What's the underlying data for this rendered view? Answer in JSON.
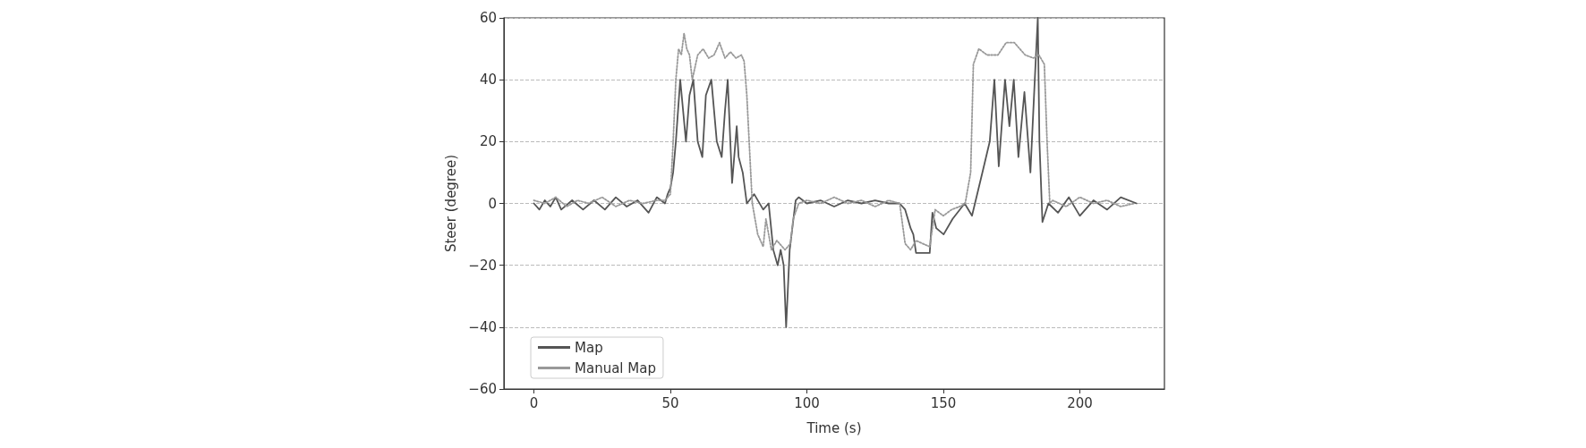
{
  "chart_data": {
    "type": "line",
    "xlabel": "Time (s)",
    "ylabel": "Steer (degree)",
    "xlim": [
      -11,
      231
    ],
    "xticks": [
      0,
      50,
      100,
      150,
      200
    ],
    "ylim": [
      -60,
      60
    ],
    "yticks": [
      -60,
      -40,
      -20,
      0,
      20,
      40,
      60
    ],
    "grid": "y",
    "legend": "bottom left",
    "marker": "none",
    "series": [
      {
        "name": "Map",
        "color": "#555555",
        "line_style": "solid",
        "x": [
          0,
          2,
          4,
          6,
          8,
          10,
          14,
          18,
          22,
          26,
          30,
          34,
          38,
          42,
          45,
          48,
          49,
          50,
          51,
          52,
          53.6,
          55.7,
          57,
          58.4,
          60,
          61.7,
          63,
          65,
          67,
          68.8,
          70,
          71,
          72.6,
          74.3,
          75,
          76.5,
          78,
          80.7,
          84,
          86,
          87.7,
          89.3,
          90.4,
          91.5,
          92.4,
          93.7,
          95.9,
          97,
          100,
          105,
          110,
          115,
          120,
          125,
          130,
          134,
          136,
          138,
          139,
          140,
          145,
          146,
          147.4,
          150.1,
          153.4,
          157.8,
          160.5,
          164.3,
          167,
          168.7,
          170.3,
          172.6,
          174.2,
          175.8,
          177.5,
          179.7,
          181.9,
          183.5,
          184.6,
          185.2,
          186.3,
          188.5,
          192,
          196,
          200,
          205,
          210,
          215,
          220.8
        ],
        "values": [
          0,
          -2,
          1,
          -1,
          2,
          -2,
          1,
          -2,
          1,
          -2,
          2,
          -1,
          1,
          -3,
          2,
          0,
          3,
          5,
          10,
          20,
          40,
          20,
          35,
          40,
          20,
          15,
          35,
          40,
          20,
          15,
          30,
          40,
          6.6,
          25,
          15,
          10,
          0,
          3,
          -2,
          0,
          -15,
          -20,
          -15,
          -20,
          -40,
          -15,
          1,
          2,
          0,
          1,
          -1,
          1,
          0,
          1,
          0,
          0,
          -2,
          -8,
          -10,
          -16,
          -16,
          -3,
          -8,
          -10,
          -5,
          0,
          -4,
          10,
          20,
          40,
          12,
          40,
          25,
          40,
          15,
          36,
          10,
          40,
          60,
          20,
          -6,
          0,
          -3,
          2,
          -4,
          1,
          -2,
          2,
          0
        ]
      },
      {
        "name": "Manual Map",
        "color": "#999999",
        "line_style": "dotted",
        "x": [
          0,
          4,
          8,
          12,
          16,
          20,
          25,
          30,
          35,
          40,
          45,
          48,
          50,
          51,
          52,
          53,
          54,
          55,
          56,
          57,
          58,
          60,
          62,
          64,
          66,
          68,
          70,
          72,
          74,
          76,
          77,
          78,
          80,
          82,
          84,
          85,
          87,
          89,
          92,
          94,
          95,
          97,
          100,
          105,
          110,
          115,
          120,
          125,
          130,
          134,
          136,
          138,
          140,
          145,
          147,
          150,
          153,
          156,
          158,
          160,
          161,
          163,
          166,
          170,
          173,
          176,
          180,
          183,
          185,
          187,
          188,
          189,
          190,
          195,
          200,
          205,
          210,
          215,
          220
        ],
        "values": [
          1,
          0,
          2,
          -1,
          1,
          0,
          2,
          -1,
          1,
          0,
          1,
          1,
          3,
          20,
          40,
          50,
          48,
          55,
          50,
          48,
          40,
          48,
          50,
          47,
          48,
          52,
          47,
          49,
          47,
          48,
          46,
          35,
          0,
          -10,
          -14,
          -5,
          -15,
          -12,
          -15,
          -13,
          -5,
          0,
          1,
          0,
          2,
          0,
          1,
          -1,
          1,
          0,
          -13,
          -15,
          -12,
          -14,
          -2,
          -4,
          -2,
          -1,
          0,
          10,
          45,
          50,
          48,
          48,
          52,
          52,
          48,
          47,
          48,
          45,
          20,
          0,
          1,
          -1,
          2,
          0,
          1,
          -1,
          0
        ]
      }
    ]
  }
}
